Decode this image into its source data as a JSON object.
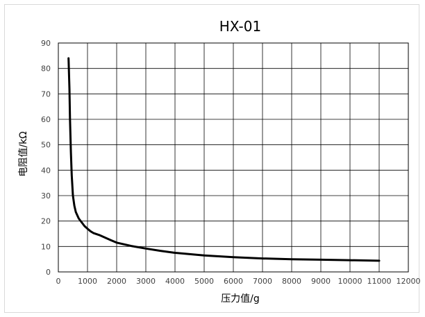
{
  "chart_data": {
    "type": "line",
    "title": "HX-01",
    "xlabel": "压力值/g",
    "ylabel": "电阻值/kΩ",
    "xlim": [
      0,
      12000
    ],
    "ylim": [
      0,
      90
    ],
    "x_ticks": [
      "0",
      "1000",
      "2000",
      "3000",
      "4000",
      "5000",
      "6000",
      "7000",
      "8000",
      "9000",
      "10000",
      "11000",
      "12000"
    ],
    "y_ticks": [
      "0",
      "10",
      "20",
      "30",
      "40",
      "50",
      "60",
      "70",
      "80",
      "90"
    ],
    "grid": true,
    "series": [
      {
        "color": "#000000",
        "x": [
          350,
          380,
          400,
          430,
          460,
          500,
          550,
          600,
          700,
          800,
          900,
          1000,
          1100,
          1200,
          1400,
          1600,
          1800,
          2000,
          2500,
          3000,
          3500,
          4000,
          5000,
          6000,
          7000,
          8000,
          9000,
          10000,
          11000
        ],
        "y": [
          84,
          72,
          60,
          47,
          38,
          30,
          26,
          23.5,
          21,
          19.5,
          18,
          17,
          16,
          15.3,
          14.5,
          13.5,
          12.5,
          11.5,
          10.2,
          9.2,
          8.3,
          7.5,
          6.5,
          5.8,
          5.3,
          5.0,
          4.8,
          4.6,
          4.4
        ]
      }
    ]
  }
}
